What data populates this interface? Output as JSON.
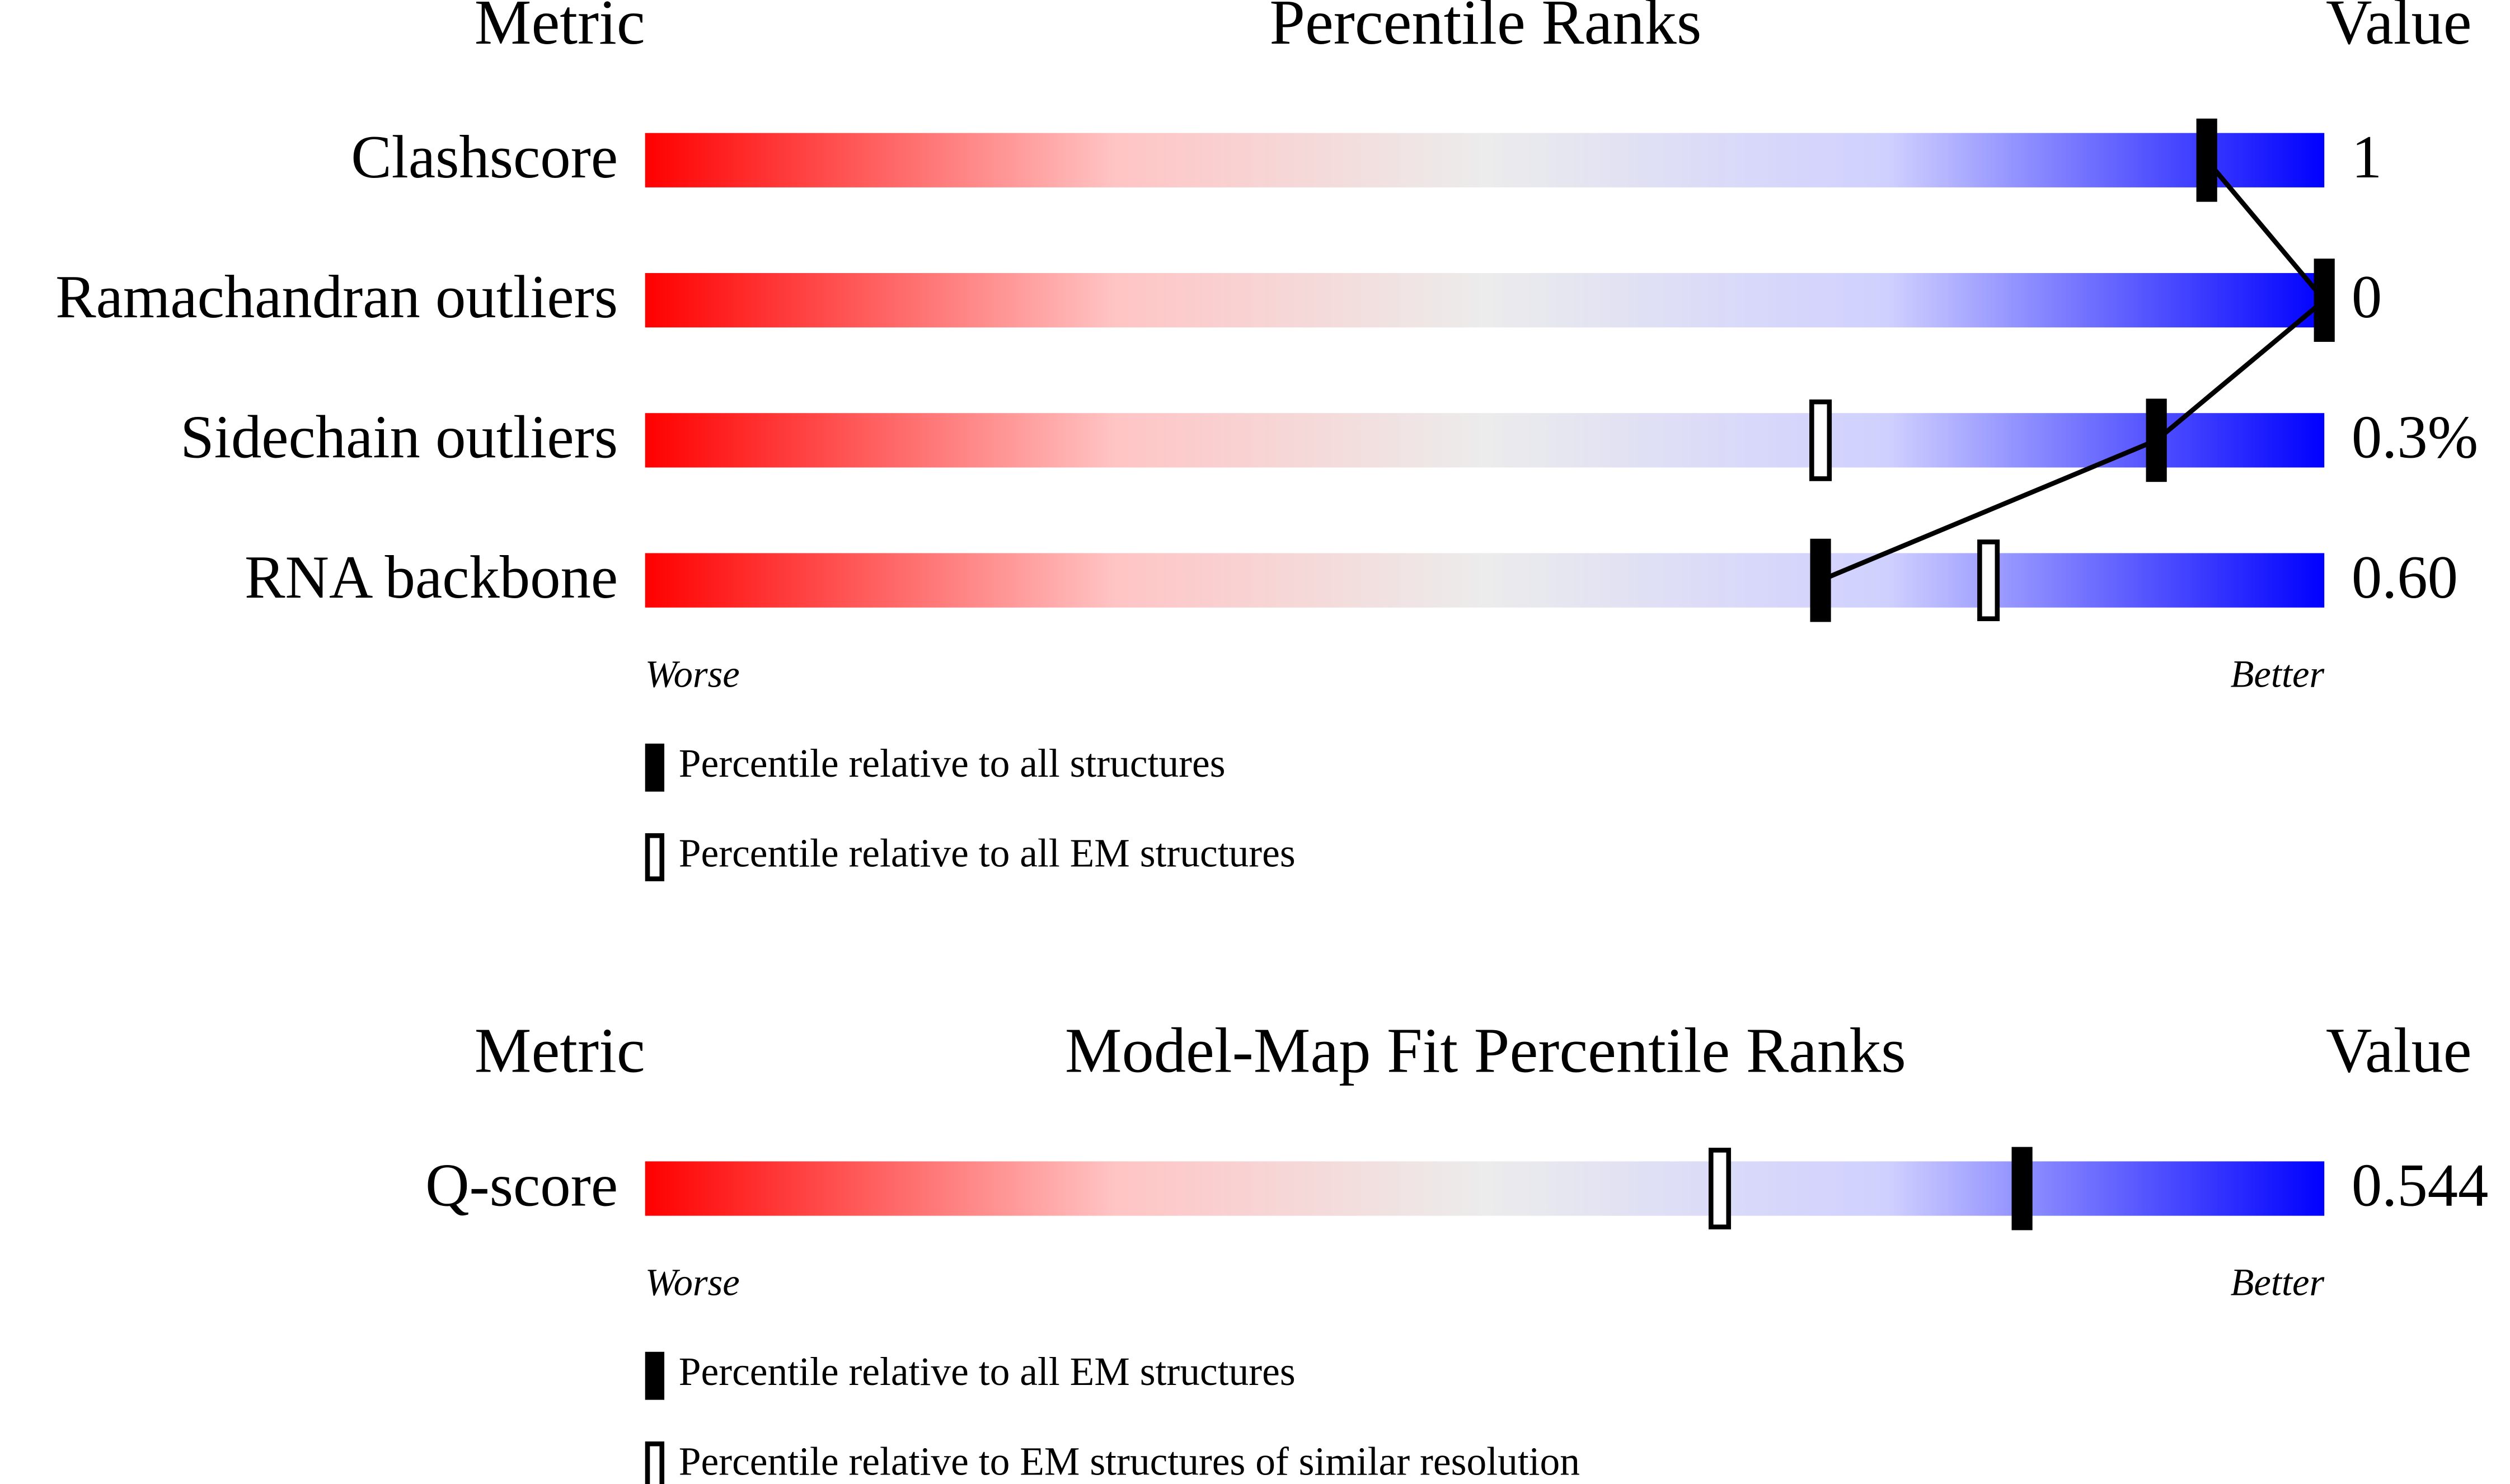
{
  "chart_data": [
    {
      "type": "percentile-slider",
      "headers": {
        "metric": "Metric",
        "title": "Percentile Ranks",
        "value": "Value"
      },
      "categories": [
        "Clashscore",
        "Ramachandran outliers",
        "Sidechain outliers",
        "RNA backbone"
      ],
      "printed_values": [
        "1",
        "0",
        "0.3%",
        "0.60"
      ],
      "series": [
        {
          "name": "Percentile relative to all structures",
          "color": "#000000",
          "filled": true,
          "connected": true,
          "values": [
            93,
            100,
            90,
            70
          ]
        },
        {
          "name": "Percentile relative to all EM structures",
          "color": "#000000",
          "filled": false,
          "connected": false,
          "values": [
            null,
            null,
            70,
            80
          ]
        }
      ],
      "xlim": [
        0,
        100
      ],
      "worse_label": "Worse",
      "better_label": "Better"
    },
    {
      "type": "percentile-slider",
      "headers": {
        "metric": "Metric",
        "title": "Model-Map Fit Percentile Ranks",
        "value": "Value"
      },
      "categories": [
        "Q-score"
      ],
      "printed_values": [
        "0.544"
      ],
      "series": [
        {
          "name": "Percentile relative to all EM structures",
          "color": "#000000",
          "filled": true,
          "connected": true,
          "values": [
            82
          ]
        },
        {
          "name": "Percentile relative to EM structures of similar resolution",
          "color": "#000000",
          "filled": false,
          "connected": false,
          "values": [
            64
          ]
        }
      ],
      "xlim": [
        0,
        100
      ],
      "worse_label": "Worse",
      "better_label": "Better"
    }
  ]
}
